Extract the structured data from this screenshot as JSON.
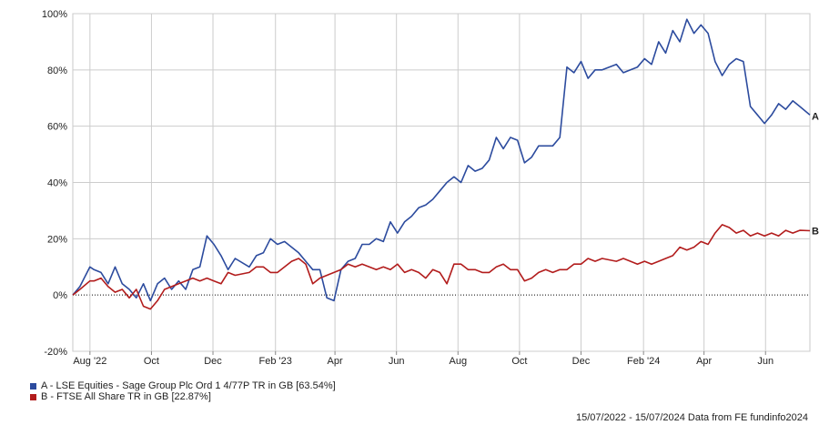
{
  "chart_data": {
    "type": "line",
    "title": "",
    "xlabel": "",
    "ylabel": "",
    "x_tick_labels": [
      "Aug '22",
      "Oct",
      "Dec",
      "Feb '23",
      "Apr",
      "Jun",
      "Aug",
      "Oct",
      "Dec",
      "Feb '24",
      "Apr",
      "Jun"
    ],
    "y_tick_labels": [
      "-20%",
      "0%",
      "20%",
      "40%",
      "60%",
      "80%",
      "100%"
    ],
    "ylim": [
      -20,
      100
    ],
    "y_unit": "%",
    "date_range": [
      "2022-07-15",
      "2024-07-15"
    ],
    "grid": true,
    "zero_line": "dotted",
    "legend_position": "bottom-left",
    "series": [
      {
        "id": "A",
        "name": "A - LSE Equities - Sage Group Plc Ord 1 4/77P TR in GB [63.54%]",
        "end_label": "A",
        "color": "#2c4b9e",
        "x": [
          "2022-07-15",
          "2022-07-22",
          "2022-08-01",
          "2022-08-05",
          "2022-08-12",
          "2022-08-19",
          "2022-08-26",
          "2022-09-02",
          "2022-09-09",
          "2022-09-16",
          "2022-09-23",
          "2022-09-30",
          "2022-10-07",
          "2022-10-14",
          "2022-10-21",
          "2022-10-28",
          "2022-11-04",
          "2022-11-11",
          "2022-11-18",
          "2022-11-25",
          "2022-12-02",
          "2022-12-09",
          "2022-12-16",
          "2022-12-23",
          "2023-01-06",
          "2023-01-13",
          "2023-01-20",
          "2023-01-27",
          "2023-02-03",
          "2023-02-10",
          "2023-02-17",
          "2023-02-24",
          "2023-03-03",
          "2023-03-10",
          "2023-03-17",
          "2023-03-24",
          "2023-03-31",
          "2023-04-07",
          "2023-04-14",
          "2023-04-21",
          "2023-04-28",
          "2023-05-05",
          "2023-05-12",
          "2023-05-19",
          "2023-05-26",
          "2023-06-02",
          "2023-06-09",
          "2023-06-16",
          "2023-06-23",
          "2023-06-30",
          "2023-07-07",
          "2023-07-14",
          "2023-07-21",
          "2023-07-28",
          "2023-08-04",
          "2023-08-11",
          "2023-08-18",
          "2023-08-25",
          "2023-09-01",
          "2023-09-08",
          "2023-09-15",
          "2023-09-22",
          "2023-09-29",
          "2023-10-06",
          "2023-10-13",
          "2023-10-20",
          "2023-10-27",
          "2023-11-03",
          "2023-11-10",
          "2023-11-17",
          "2023-11-24",
          "2023-12-01",
          "2023-12-08",
          "2023-12-15",
          "2023-12-22",
          "2024-01-05",
          "2024-01-12",
          "2024-01-19",
          "2024-01-26",
          "2024-02-02",
          "2024-02-09",
          "2024-02-16",
          "2024-02-23",
          "2024-03-01",
          "2024-03-08",
          "2024-03-15",
          "2024-03-22",
          "2024-03-29",
          "2024-04-05",
          "2024-04-12",
          "2024-04-19",
          "2024-04-26",
          "2024-05-03",
          "2024-05-10",
          "2024-05-17",
          "2024-05-24",
          "2024-05-31",
          "2024-06-07",
          "2024-06-14",
          "2024-06-21",
          "2024-06-28",
          "2024-07-05",
          "2024-07-15"
        ],
        "y": [
          0,
          3,
          10,
          9,
          8,
          4,
          10,
          4,
          2,
          -1,
          4,
          -2,
          4,
          6,
          2,
          5,
          2,
          9,
          10,
          21,
          18,
          14,
          9,
          13,
          10,
          14,
          15,
          20,
          18,
          19,
          17,
          15,
          12,
          9,
          9,
          -1,
          -2,
          9,
          12,
          13,
          18,
          18,
          20,
          19,
          26,
          22,
          26,
          28,
          31,
          32,
          34,
          37,
          40,
          42,
          40,
          46,
          44,
          45,
          48,
          56,
          52,
          56,
          55,
          47,
          49,
          53,
          53,
          53,
          56,
          81,
          79,
          83,
          77,
          80,
          80,
          82,
          79,
          80,
          81,
          84,
          82,
          90,
          86,
          94,
          90,
          98,
          93,
          96,
          93,
          83,
          78,
          82,
          84,
          83,
          67,
          64,
          61,
          64,
          68,
          66,
          69,
          67,
          64
        ],
        "y_end": 63.54
      },
      {
        "id": "B",
        "name": "B - FTSE All Share TR in GB [22.87%]",
        "end_label": "B",
        "color": "#b21c1c",
        "x": [
          "2022-07-15",
          "2022-07-22",
          "2022-08-01",
          "2022-08-05",
          "2022-08-12",
          "2022-08-19",
          "2022-08-26",
          "2022-09-02",
          "2022-09-09",
          "2022-09-16",
          "2022-09-23",
          "2022-09-30",
          "2022-10-07",
          "2022-10-14",
          "2022-10-21",
          "2022-10-28",
          "2022-11-04",
          "2022-11-11",
          "2022-11-18",
          "2022-11-25",
          "2022-12-02",
          "2022-12-09",
          "2022-12-16",
          "2022-12-23",
          "2023-01-06",
          "2023-01-13",
          "2023-01-20",
          "2023-01-27",
          "2023-02-03",
          "2023-02-10",
          "2023-02-17",
          "2023-02-24",
          "2023-03-03",
          "2023-03-10",
          "2023-03-17",
          "2023-03-24",
          "2023-03-31",
          "2023-04-07",
          "2023-04-14",
          "2023-04-21",
          "2023-04-28",
          "2023-05-05",
          "2023-05-12",
          "2023-05-19",
          "2023-05-26",
          "2023-06-02",
          "2023-06-09",
          "2023-06-16",
          "2023-06-23",
          "2023-06-30",
          "2023-07-07",
          "2023-07-14",
          "2023-07-21",
          "2023-07-28",
          "2023-08-04",
          "2023-08-11",
          "2023-08-18",
          "2023-08-25",
          "2023-09-01",
          "2023-09-08",
          "2023-09-15",
          "2023-09-22",
          "2023-09-29",
          "2023-10-06",
          "2023-10-13",
          "2023-10-20",
          "2023-10-27",
          "2023-11-03",
          "2023-11-10",
          "2023-11-17",
          "2023-11-24",
          "2023-12-01",
          "2023-12-08",
          "2023-12-15",
          "2023-12-22",
          "2024-01-05",
          "2024-01-12",
          "2024-01-19",
          "2024-01-26",
          "2024-02-02",
          "2024-02-09",
          "2024-02-16",
          "2024-02-23",
          "2024-03-01",
          "2024-03-08",
          "2024-03-15",
          "2024-03-22",
          "2024-03-29",
          "2024-04-05",
          "2024-04-12",
          "2024-04-19",
          "2024-04-26",
          "2024-05-03",
          "2024-05-10",
          "2024-05-17",
          "2024-05-24",
          "2024-05-31",
          "2024-06-07",
          "2024-06-14",
          "2024-06-21",
          "2024-06-28",
          "2024-07-05",
          "2024-07-15"
        ],
        "y": [
          0,
          2,
          5,
          5,
          6,
          3,
          1,
          2,
          -1,
          2,
          -4,
          -5,
          -2,
          2,
          3,
          4,
          5,
          6,
          5,
          6,
          5,
          4,
          8,
          7,
          8,
          10,
          10,
          8,
          8,
          10,
          12,
          13,
          11,
          4,
          6,
          7,
          8,
          9,
          11,
          10,
          11,
          10,
          9,
          10,
          9,
          11,
          8,
          9,
          8,
          6,
          9,
          8,
          4,
          11,
          11,
          9,
          9,
          8,
          8,
          10,
          11,
          9,
          9,
          5,
          6,
          8,
          9,
          8,
          9,
          9,
          11,
          11,
          13,
          12,
          13,
          12,
          13,
          12,
          11,
          12,
          11,
          12,
          13,
          14,
          17,
          16,
          17,
          19,
          18,
          22,
          25,
          24,
          22,
          23,
          21,
          22,
          21,
          22,
          21,
          23,
          22,
          23,
          22.87
        ],
        "y_end": 22.87
      }
    ]
  },
  "footer": "15/07/2022 - 15/07/2024 Data from FE fundinfo2024"
}
